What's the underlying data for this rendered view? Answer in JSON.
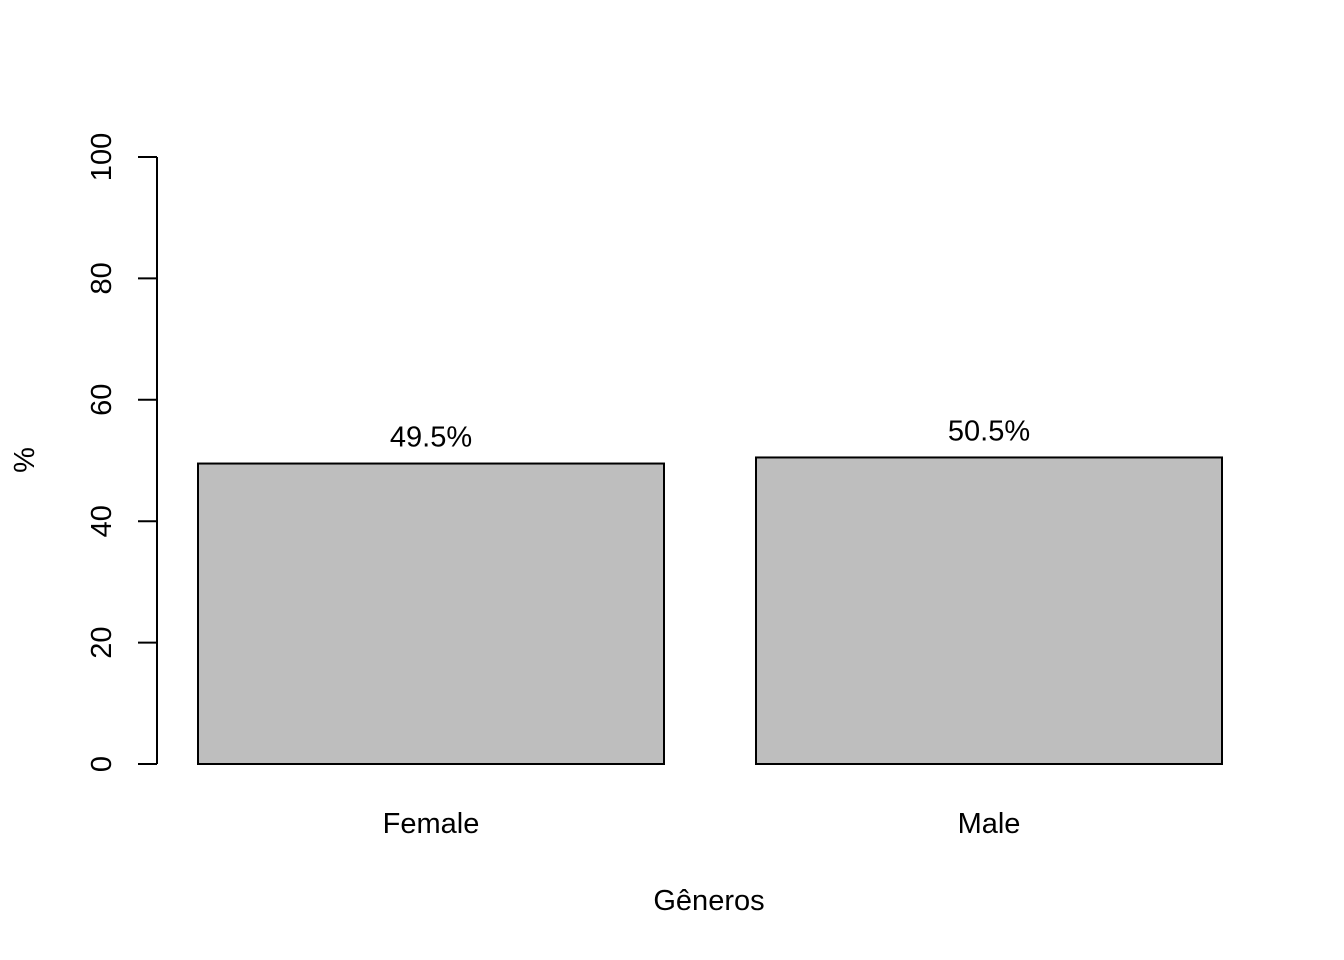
{
  "chart_data": {
    "type": "bar",
    "title": "",
    "xlabel": "Gêneros",
    "ylabel": "%",
    "categories": [
      "Female",
      "Male"
    ],
    "values": [
      49.5,
      50.5
    ],
    "data_labels": [
      "49.5%",
      "50.5%"
    ],
    "ylim": [
      0,
      100
    ],
    "yticks": [
      0,
      20,
      40,
      60,
      80,
      100
    ],
    "ytick_labels": [
      "0",
      "20",
      "40",
      "60",
      "80",
      "100"
    ],
    "grid": false,
    "bar_color": "#bebebe",
    "border_color": "#000000"
  }
}
